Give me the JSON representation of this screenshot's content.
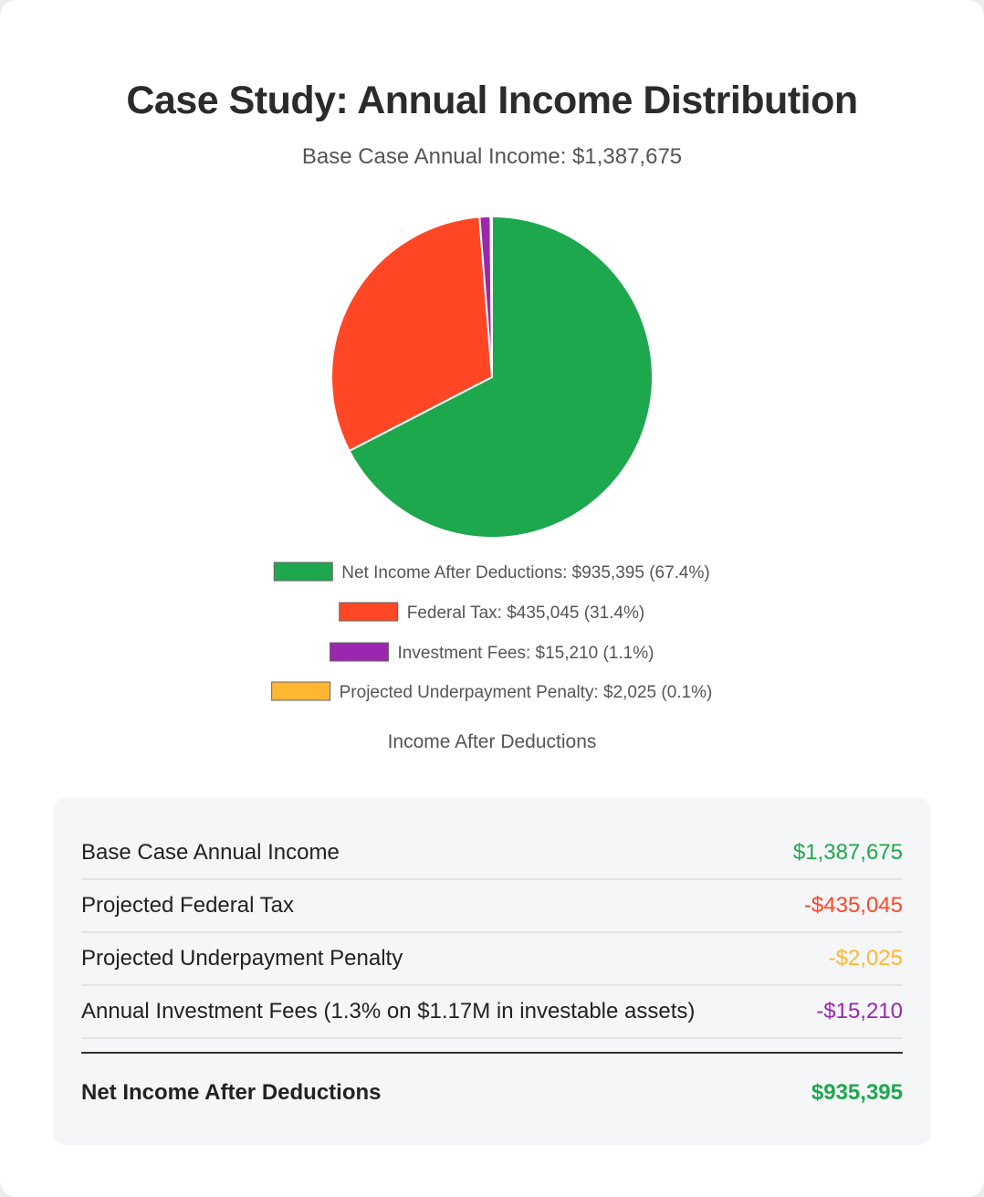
{
  "title": "Case Study: Annual Income Distribution",
  "subtitle": "Base Case Annual Income: $1,387,675",
  "chart_data": {
    "type": "pie",
    "slices": [
      {
        "label": "Net Income After Deductions: $935,395 (67.4%)",
        "value": 935395,
        "color": "#1ea84e"
      },
      {
        "label": "Federal Tax: $435,045 (31.4%)",
        "value": 435045,
        "color": "#ff4726"
      },
      {
        "label": "Investment Fees: $15,210 (1.1%)",
        "value": 15210,
        "color": "#9b27af"
      },
      {
        "label": "Projected Underpayment Penalty: $2,025 (0.1%)",
        "value": 2025,
        "color": "#ffb733"
      }
    ],
    "caption": "Income After Deductions",
    "legend_position": "bottom"
  },
  "summary": {
    "rows": [
      {
        "label": "Base Case Annual Income",
        "value": "$1,387,675",
        "color": "#1ea84e"
      },
      {
        "label": "Projected Federal Tax",
        "value": "-$435,045",
        "color": "#ff4726"
      },
      {
        "label": "Projected Underpayment Penalty",
        "value": "-$2,025",
        "color": "#ffb733"
      },
      {
        "label": "Annual Investment Fees (1.3% on $1.17M in investable assets)",
        "value": "-$15,210",
        "color": "#9b27af"
      }
    ],
    "total": {
      "label": "Net Income After Deductions",
      "value": "$935,395",
      "color": "#1ea84e"
    }
  }
}
